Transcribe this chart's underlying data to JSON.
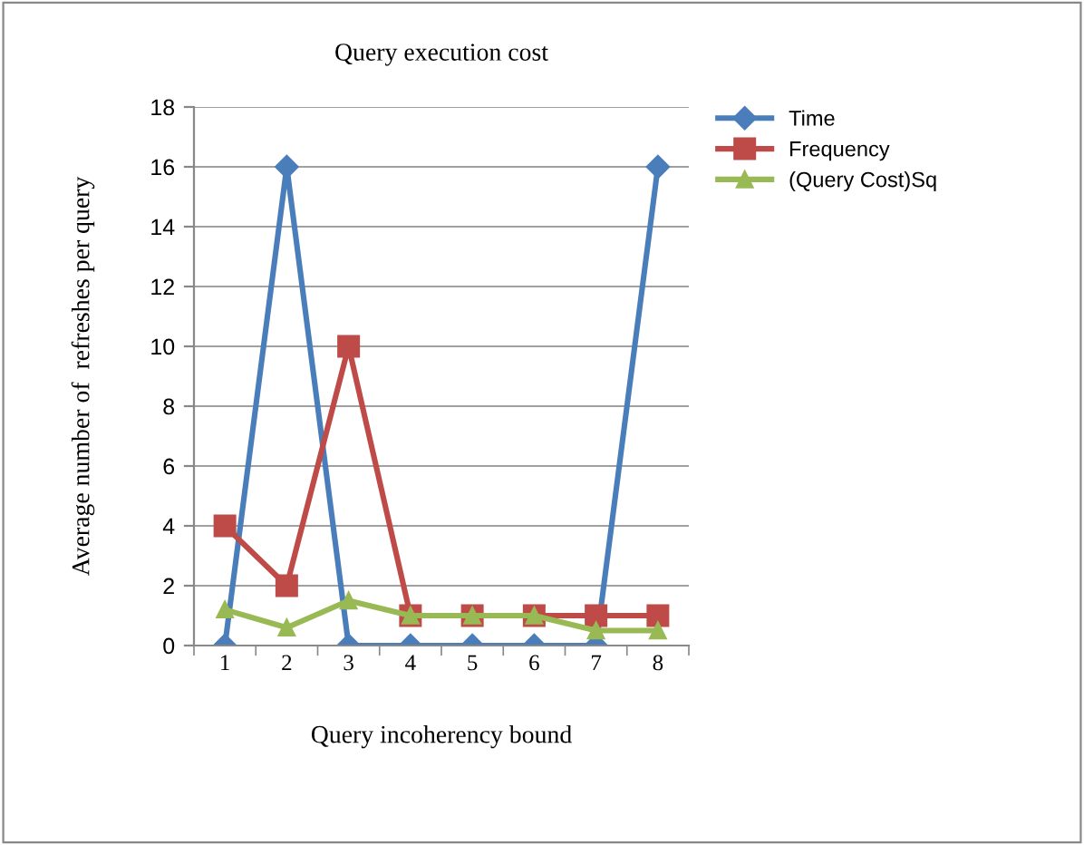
{
  "chart_data": {
    "type": "line",
    "title": "Query execution cost",
    "xlabel": "Query incoherency bound",
    "ylabel": "Average number of  refreshes per query",
    "categories": [
      "1",
      "2",
      "3",
      "4",
      "5",
      "6",
      "7",
      "8"
    ],
    "series": [
      {
        "name": "Time",
        "color": "#4a7ebb",
        "marker": "diamond",
        "values": [
          0,
          16,
          0,
          0,
          0,
          0,
          0,
          16
        ]
      },
      {
        "name": "Frequency",
        "color": "#be4b48",
        "marker": "square",
        "values": [
          4,
          2,
          10,
          1,
          1,
          1,
          1,
          1
        ]
      },
      {
        "name": "(Query Cost)Sq",
        "color": "#98b954",
        "marker": "triangle",
        "values": [
          1.2,
          0.6,
          1.5,
          1,
          1,
          1,
          0.5,
          0.5
        ]
      }
    ],
    "ylim": [
      0,
      18
    ],
    "yticks": [
      0,
      2,
      4,
      6,
      8,
      10,
      12,
      14,
      16,
      18
    ],
    "grid": "y",
    "legend": "top right",
    "line_style": "solid"
  }
}
